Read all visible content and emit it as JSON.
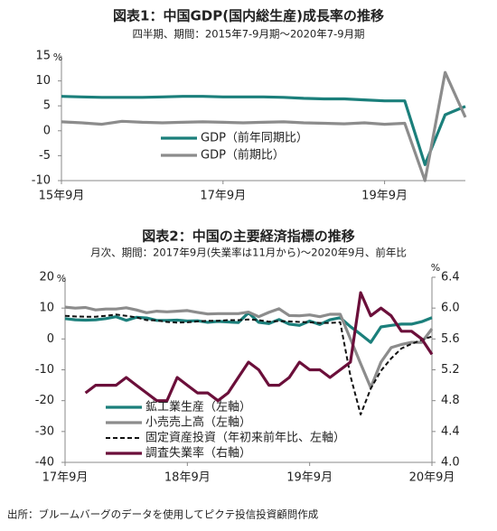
{
  "chart_data": [
    {
      "type": "line",
      "title": "図表1：中国GDP(国内総生産)成長率の推移",
      "subtitle": "四半期、期間：2015年7-9月期～2020年7-9月期",
      "yunit": "%",
      "categories": [
        "15年9月",
        null,
        null,
        null,
        null,
        null,
        null,
        null,
        "17年9月",
        null,
        null,
        null,
        null,
        null,
        null,
        null,
        "19年9月",
        null,
        null,
        null,
        null
      ],
      "series": [
        {
          "name": "GDP（前年同期比）",
          "color": "#1b7f7b",
          "values": [
            6.9,
            6.8,
            6.7,
            6.7,
            6.7,
            6.8,
            6.9,
            6.9,
            6.8,
            6.8,
            6.8,
            6.7,
            6.5,
            6.4,
            6.4,
            6.2,
            6.0,
            6.0,
            -6.8,
            3.2,
            4.9
          ]
        },
        {
          "name": "GDP（前期比）",
          "color": "#8c8c8c",
          "values": [
            1.8,
            1.6,
            1.3,
            1.9,
            1.7,
            1.6,
            1.7,
            1.8,
            1.7,
            1.6,
            1.7,
            1.8,
            1.6,
            1.5,
            1.4,
            1.6,
            1.3,
            1.5,
            -10.0,
            11.7,
            2.7
          ]
        }
      ],
      "ylim": [
        -10,
        15
      ],
      "yticks": [
        15,
        10,
        5,
        0,
        -5,
        -10
      ],
      "grid": false,
      "legend": "lower center"
    },
    {
      "type": "line",
      "title": "図表2：中国の主要経済指標の推移",
      "subtitle": "月次、期間：2017年9月(失業率は11月から)～2020年9月、前年比",
      "yunit": "%",
      "y2unit": "%",
      "categories": [
        "17年9月",
        null,
        null,
        null,
        null,
        null,
        null,
        null,
        null,
        null,
        null,
        null,
        "18年9月",
        null,
        null,
        null,
        null,
        null,
        null,
        null,
        null,
        null,
        null,
        null,
        "19年9月",
        null,
        null,
        null,
        null,
        null,
        null,
        null,
        null,
        null,
        null,
        null,
        "20年9月"
      ],
      "series": [
        {
          "name": "鉱工業生産（左軸）",
          "color": "#1b7f7b",
          "values": [
            6.6,
            6.2,
            6.1,
            6.2,
            6.6,
            7.2,
            6.0,
            7.0,
            6.8,
            6.0,
            6.0,
            6.1,
            5.8,
            5.9,
            5.4,
            5.7,
            5.5,
            5.3,
            8.5,
            5.4,
            5.0,
            6.3,
            4.8,
            4.4,
            5.8,
            4.7,
            6.2,
            6.9,
            4.0,
            1.5,
            -1.1,
            3.9,
            4.4,
            4.8,
            4.8,
            5.6,
            6.9
          ]
        },
        {
          "name": "小売売上高（左軸）",
          "color": "#8c8c8c",
          "values": [
            10.3,
            10.0,
            10.2,
            9.4,
            9.7,
            9.7,
            10.1,
            9.4,
            8.5,
            9.0,
            8.8,
            9.0,
            9.2,
            8.6,
            8.1,
            8.2,
            8.2,
            8.2,
            8.7,
            7.2,
            8.6,
            9.8,
            7.6,
            7.5,
            7.8,
            7.2,
            8.0,
            8.0,
            0.0,
            -8,
            -15.8,
            -7.5,
            -2.8,
            -1.8,
            -1.1,
            -1.1,
            3.3
          ]
        },
        {
          "name": "固定資産投資（年初来前年比、左軸）",
          "color": "#111111",
          "dash": true,
          "values": [
            7.5,
            7.3,
            7.2,
            7.2,
            7.5,
            7.9,
            7.5,
            7.0,
            6.1,
            6.0,
            5.5,
            5.3,
            5.4,
            5.7,
            5.9,
            5.9,
            6.1,
            6.1,
            6.3,
            6.1,
            5.6,
            5.8,
            5.7,
            5.5,
            5.4,
            5.2,
            5.2,
            5.4,
            -12,
            -24.5,
            -16.1,
            -10.3,
            -6.3,
            -3.1,
            -1.6,
            -0.3,
            0.8
          ]
        },
        {
          "name": "調査失業率（右軸）",
          "color": "#6b0f3a",
          "axis": "y2",
          "values": [
            null,
            null,
            4.9,
            5.0,
            5.0,
            5.0,
            5.1,
            5.0,
            4.9,
            4.8,
            4.8,
            5.1,
            5.0,
            4.9,
            4.9,
            4.8,
            4.9,
            5.1,
            5.3,
            5.2,
            5.0,
            5.0,
            5.1,
            5.3,
            5.2,
            5.2,
            5.1,
            5.2,
            5.3,
            6.2,
            5.9,
            6.0,
            5.9,
            5.7,
            5.7,
            5.6,
            5.4
          ]
        }
      ],
      "ylim": [
        -40,
        20
      ],
      "yticks": [
        20,
        10,
        0,
        -10,
        -20,
        -30,
        -40
      ],
      "y2lim": [
        4,
        6.4
      ],
      "y2ticks": [
        6.4,
        {
          "value": 6,
          "label": "6.0"
        },
        5.6,
        5.2,
        4.8,
        4.4,
        {
          "value": 4,
          "label": "4.0"
        }
      ],
      "grid": false,
      "legend": "lower left"
    }
  ],
  "source": "出所：ブルームバーグのデータを使用してピクテ投信投資顧問作成"
}
